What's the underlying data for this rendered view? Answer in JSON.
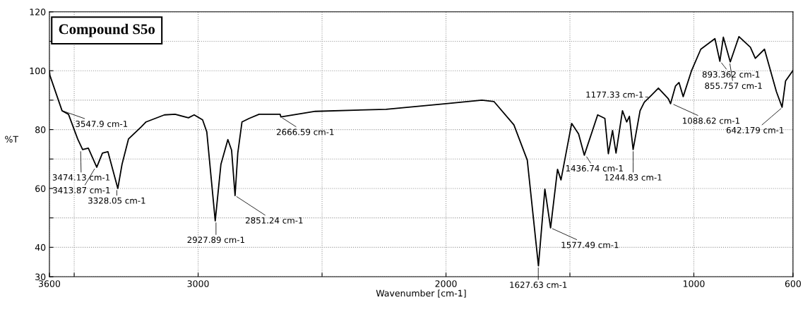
{
  "chart_data": {
    "type": "line",
    "title": "Compound S5o",
    "xlabel": "Wavenumber [cm-1]",
    "ylabel": "%T",
    "x": [
      3600,
      3598,
      3549,
      3523,
      3486,
      3466,
      3443,
      3409,
      3386,
      3364,
      3324,
      3307,
      3281,
      3230,
      3210,
      3136,
      3093,
      3039,
      3016,
      2982,
      2965,
      2931,
      2908,
      2880,
      2865,
      2851,
      2840,
      2823,
      2794,
      2754,
      2669,
      2666,
      2527,
      2242,
      2000,
      1855,
      1806,
      1726,
      1672,
      1627,
      1601,
      1578,
      1550,
      1536,
      1493,
      1465,
      1442,
      1388,
      1359,
      1345,
      1328,
      1314,
      1288,
      1271,
      1260,
      1245,
      1217,
      1200,
      1171,
      1143,
      1103,
      1094,
      1074,
      1060,
      1043,
      1009,
      972,
      915,
      895,
      881,
      853,
      818,
      772,
      752,
      715,
      667,
      644,
      630,
      600
    ],
    "series": [
      {
        "color": "#000000",
        "values": [
          100,
          98.4,
          86.4,
          85.2,
          76.8,
          73.2,
          73.7,
          67.2,
          72.0,
          72.5,
          60.0,
          68.2,
          76.8,
          80.9,
          82.6,
          85.0,
          85.2,
          84.0,
          85.0,
          83.3,
          79.2,
          49.0,
          68.2,
          76.6,
          73.0,
          57.6,
          72.0,
          82.6,
          83.8,
          85.2,
          85.2,
          84.3,
          86.2,
          86.9,
          88.8,
          90.0,
          89.5,
          81.6,
          69.6,
          33.7,
          59.8,
          46.6,
          66.5,
          62.9,
          82.1,
          78.5,
          71.3,
          85.0,
          83.8,
          71.8,
          79.7,
          72.0,
          86.4,
          82.6,
          84.5,
          73.2,
          86.4,
          89.3,
          91.7,
          94.1,
          90.5,
          88.8,
          94.8,
          96.0,
          91.2,
          100.1,
          107.3,
          110.9,
          103.2,
          111.4,
          103.0,
          111.6,
          108.0,
          104.2,
          107.3,
          92.9,
          87.6,
          96.5,
          100.1
        ]
      }
    ],
    "xlim": [
      3600,
      600
    ],
    "xticks": [
      3600,
      {
        "value": 3500,
        "label": null
      },
      3000,
      {
        "value": 2500,
        "label": null
      },
      2000,
      {
        "value": 1500,
        "label": null
      },
      1000,
      600
    ],
    "ylim": [
      30,
      120
    ],
    "yticks": [
      30,
      40,
      {
        "value": 50,
        "label": null
      },
      60,
      {
        "value": 70,
        "label": null
      },
      80,
      {
        "value": 90,
        "label": null
      },
      100,
      {
        "value": 110,
        "label": null
      },
      120
    ],
    "grid": true,
    "legend": false,
    "line_style": "solid",
    "annotations": [
      {
        "text": "3547.9 cm-1",
        "x": 3547.9,
        "y": 86.4
      },
      {
        "text": "3474.13 cm-1",
        "x": 3474.13,
        "y": 73.2
      },
      {
        "text": "3413.87 cm-1",
        "x": 3413.87,
        "y": 67.2
      },
      {
        "text": "3328.05 cm-1",
        "x": 3328.05,
        "y": 60.0
      },
      {
        "text": "2927.89 cm-1",
        "x": 2927.89,
        "y": 49.0
      },
      {
        "text": "2851.24 cm-1",
        "x": 2851.24,
        "y": 57.6
      },
      {
        "text": "2666.59 cm-1",
        "x": 2666.59,
        "y": 84.3
      },
      {
        "text": "1627.63 cm-1",
        "x": 1627.63,
        "y": 33.7
      },
      {
        "text": "1577.49 cm-1",
        "x": 1577.49,
        "y": 46.6
      },
      {
        "text": "1436.74 cm-1",
        "x": 1436.74,
        "y": 71.3
      },
      {
        "text": "1244.83 cm-1",
        "x": 1244.83,
        "y": 73.2
      },
      {
        "text": "1177.33 cm-1",
        "x": 1177.33,
        "y": 91.0
      },
      {
        "text": "1088.62 cm-1",
        "x": 1088.62,
        "y": 88.8
      },
      {
        "text": "893.362 cm-1",
        "x": 893.362,
        "y": 103.2
      },
      {
        "text": "855.757 cm-1",
        "x": 855.757,
        "y": 103.0
      },
      {
        "text": "642.179 cm-1",
        "x": 642.179,
        "y": 87.6
      }
    ]
  }
}
